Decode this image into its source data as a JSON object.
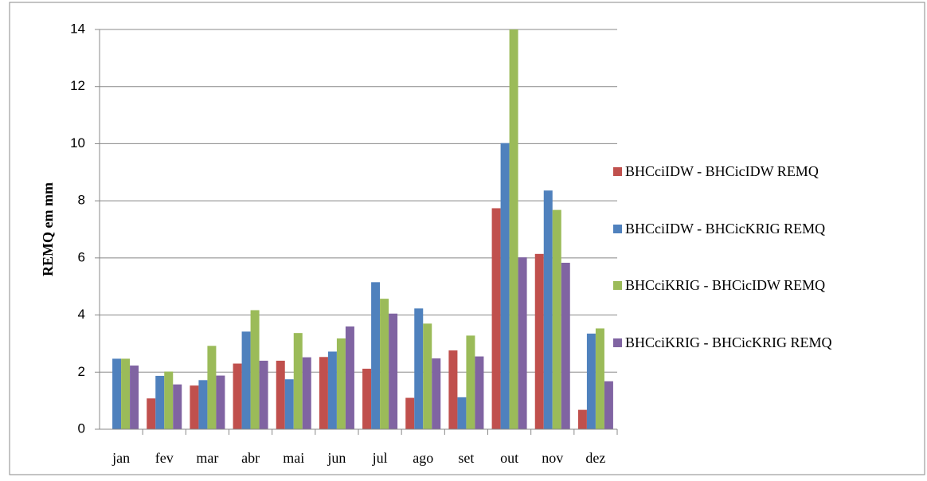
{
  "chart_data": {
    "type": "bar",
    "y_label": "REMQ em mm",
    "categories": [
      "jan",
      "fev",
      "mar",
      "abr",
      "mai",
      "jun",
      "jul",
      "ago",
      "set",
      "out",
      "nov",
      "dez"
    ],
    "series": [
      {
        "name": "BHCciIDW - BHCicIDW REMQ",
        "color": "#c0504d",
        "values": [
          0,
          1.08,
          1.53,
          2.3,
          2.4,
          2.53,
          2.12,
          1.1,
          2.76,
          7.74,
          6.14,
          0.68
        ]
      },
      {
        "name": "BHCciIDW - BHCicKRIG REMQ",
        "color": "#4f81bd",
        "values": [
          2.47,
          1.87,
          1.72,
          3.42,
          1.75,
          2.72,
          5.15,
          4.23,
          1.12,
          10.02,
          8.36,
          3.35
        ]
      },
      {
        "name": "BHCciKRIG - BHCicIDW REMQ",
        "color": "#9bbb59",
        "values": [
          2.47,
          2.02,
          2.92,
          4.17,
          3.37,
          3.18,
          4.57,
          3.7,
          3.28,
          14,
          7.68,
          3.53
        ]
      },
      {
        "name": "BHCciKRIG - BHCicKRIG REMQ",
        "color": "#8064a2",
        "values": [
          2.23,
          1.57,
          1.88,
          2.4,
          2.52,
          3.6,
          4.05,
          2.48,
          2.55,
          6.02,
          5.83,
          1.68
        ]
      }
    ],
    "ylim": [
      0,
      14
    ],
    "yticks": [
      0,
      2,
      4,
      6,
      8,
      10,
      12,
      14
    ],
    "grid": true,
    "legend": "right"
  }
}
